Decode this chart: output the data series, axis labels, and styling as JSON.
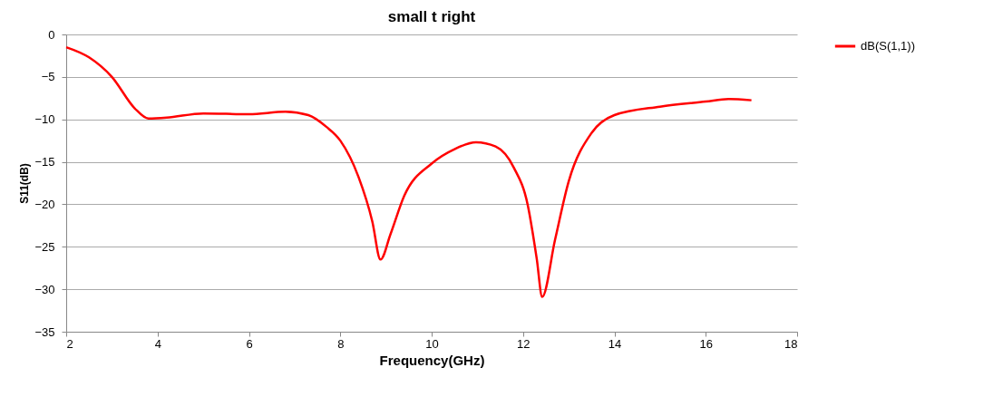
{
  "chart_data": {
    "type": "line",
    "title": "small t right",
    "xlabel": "Frequency(GHz)",
    "ylabel": "S11(dB)",
    "xlim": [
      2,
      18
    ],
    "xticks": [
      2,
      4,
      6,
      8,
      10,
      12,
      14,
      16,
      18
    ],
    "ylim": [
      -35,
      0
    ],
    "yticks": [
      -35,
      -30,
      -25,
      -20,
      -15,
      -10,
      -5,
      0
    ],
    "grid": "y",
    "legend": "right",
    "marker": "none",
    "line_style": "solid",
    "series": [
      {
        "name": "dB(S(1,1))",
        "color": "#ff0000",
        "x": [
          2,
          2.5,
          3,
          3.5,
          3.8,
          4.2,
          5,
          6,
          6.8,
          7.3,
          7.7,
          8,
          8.4,
          8.7,
          8.88,
          9.1,
          9.4,
          10,
          10.5,
          10.97,
          11.4,
          11.8,
          12.1,
          12.3,
          12.42,
          12.7,
          13,
          13.5,
          14,
          15,
          16,
          16.5,
          17
        ],
        "values": [
          -1.5,
          -2.7,
          -5,
          -8.7,
          -9.9,
          -9.8,
          -9.3,
          -9.4,
          -9.1,
          -9.5,
          -10.9,
          -12.5,
          -16.8,
          -22,
          -26.5,
          -23.5,
          -19,
          -15.2,
          -13.5,
          -12.7,
          -13.2,
          -15.7,
          -20,
          -26.4,
          -30.9,
          -24.2,
          -17.3,
          -11.6,
          -9.5,
          -8.5,
          -7.9,
          -7.6,
          -7.75
        ]
      }
    ]
  }
}
